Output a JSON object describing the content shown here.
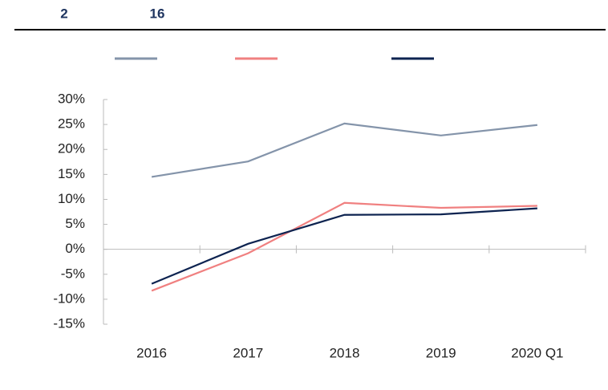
{
  "header": [
    "2",
    "16"
  ],
  "chart_data": {
    "type": "line",
    "categories": [
      "2016",
      "2017",
      "2018",
      "2019",
      "2020 Q1"
    ],
    "series": [
      {
        "color": "#8494aa",
        "values": [
          14.5,
          17.6,
          25.2,
          22.8,
          24.9
        ]
      },
      {
        "color": "#f08080",
        "values": [
          -8.3,
          -0.8,
          9.3,
          8.3,
          8.7
        ]
      },
      {
        "color": "#0d2350",
        "values": [
          -6.9,
          1.1,
          6.9,
          7.0,
          8.2
        ]
      }
    ],
    "ylim": [
      -15,
      30
    ],
    "yticks": [
      {
        "value": -15,
        "label": "-15%"
      },
      {
        "value": -10,
        "label": "-10%"
      },
      {
        "value": -5,
        "label": "-5%"
      },
      {
        "value": 0,
        "label": "0%"
      },
      {
        "value": 5,
        "label": "5%"
      },
      {
        "value": 10,
        "label": "10%"
      },
      {
        "value": 15,
        "label": "15%"
      },
      {
        "value": 20,
        "label": "20%"
      },
      {
        "value": 25,
        "label": "25%"
      },
      {
        "value": 30,
        "label": "30%"
      }
    ],
    "legend": "top"
  }
}
